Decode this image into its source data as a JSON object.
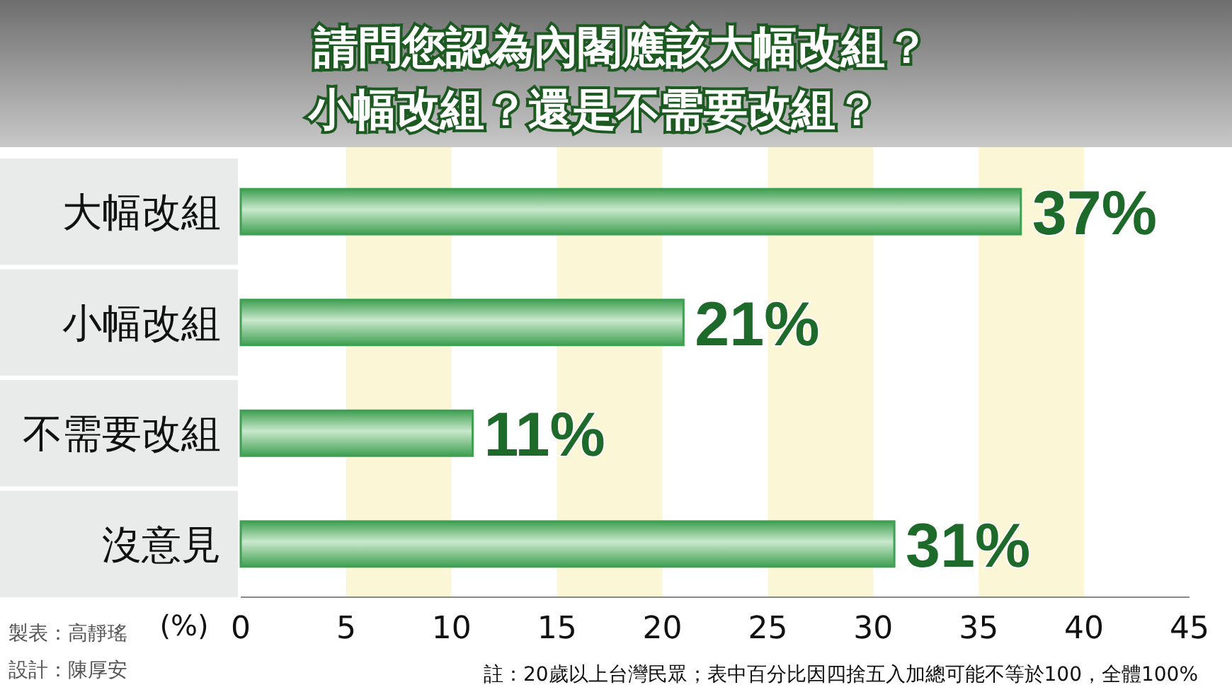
{
  "chart_data": {
    "type": "bar",
    "orientation": "horizontal",
    "title": "請問您認為內閣應該大幅改組？小幅改組？還是不需要改組？",
    "xlabel": "(%)",
    "categories": [
      "大幅改組",
      "小幅改組",
      "不需要改組",
      "沒意見"
    ],
    "values": [
      37,
      21,
      11,
      31
    ],
    "value_labels": [
      "37%",
      "21%",
      "11%",
      "31%"
    ],
    "color": "#3f9f52",
    "xlim": [
      0,
      45
    ],
    "xticks": [
      0,
      5,
      10,
      15,
      20,
      25,
      30,
      35,
      40,
      45
    ],
    "annotations": [
      "製表：高靜瑤",
      "設計：陳厚安",
      "註：20歲以上台灣民眾；表中百分比因四捨五入加總可能不等於100，全體100%"
    ]
  }
}
